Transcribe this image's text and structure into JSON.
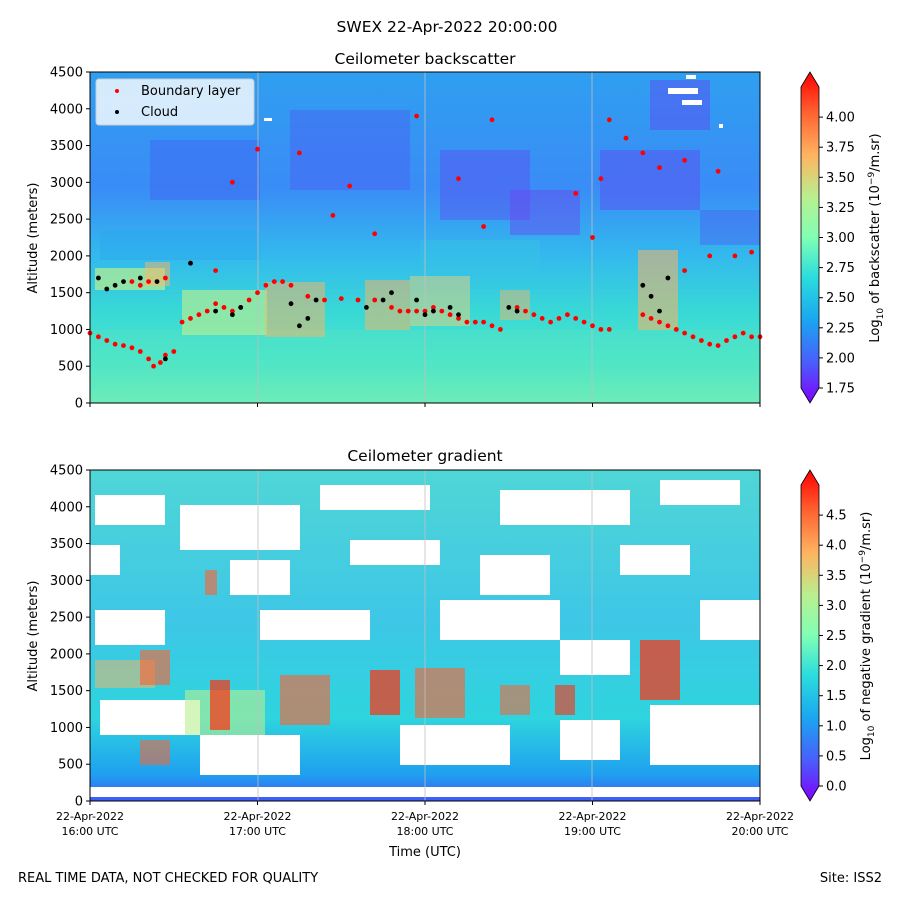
{
  "suptitle": "SWEX 22-Apr-2022 20:00:00",
  "footer": {
    "left": "REAL TIME DATA, NOT CHECKED FOR QUALITY",
    "right": "Site: ISS2"
  },
  "xaxis": {
    "label": "Time (UTC)",
    "range_hours": [
      16,
      20
    ],
    "ticks": [
      {
        "hour": 16,
        "date": "22-Apr-2022",
        "time": "16:00 UTC"
      },
      {
        "hour": 17,
        "date": "22-Apr-2022",
        "time": "17:00 UTC"
      },
      {
        "hour": 18,
        "date": "22-Apr-2022",
        "time": "18:00 UTC"
      },
      {
        "hour": 19,
        "date": "22-Apr-2022",
        "time": "19:00 UTC"
      },
      {
        "hour": 20,
        "date": "22-Apr-2022",
        "time": "20:00 UTC"
      }
    ]
  },
  "chart_data": [
    {
      "type": "heatmap",
      "title": "Ceilometer backscatter",
      "ylabel": "Altitude (meters)",
      "ylim": [
        0,
        4500
      ],
      "yticks": [
        "0",
        "500",
        "1000",
        "1500",
        "2000",
        "2500",
        "3000",
        "3500",
        "4000",
        "4500"
      ],
      "colorbar": {
        "label_main": "Log",
        "label_sub": "10",
        "label_rest": " of backscatter (10",
        "label_sup": "−9",
        "label_end": "/m.sr)",
        "range": [
          1.75,
          4.25
        ],
        "ticks": [
          "1.75",
          "2.00",
          "2.25",
          "2.50",
          "2.75",
          "3.00",
          "3.25",
          "3.50",
          "3.75",
          "4.00"
        ]
      },
      "legend": {
        "placement": "top-left",
        "entries": [
          {
            "label": "Boundary layer",
            "color": "#ff0000"
          },
          {
            "label": "Cloud",
            "color": "#000000"
          }
        ]
      },
      "series": {
        "boundary_layer": [
          [
            16.0,
            950
          ],
          [
            16.05,
            900
          ],
          [
            16.1,
            850
          ],
          [
            16.15,
            800
          ],
          [
            16.2,
            780
          ],
          [
            16.25,
            750
          ],
          [
            16.3,
            700
          ],
          [
            16.35,
            600
          ],
          [
            16.38,
            500
          ],
          [
            16.42,
            550
          ],
          [
            16.45,
            650
          ],
          [
            16.5,
            700
          ],
          [
            16.55,
            1100
          ],
          [
            16.6,
            1150
          ],
          [
            16.65,
            1200
          ],
          [
            16.7,
            1250
          ],
          [
            16.75,
            1350
          ],
          [
            16.8,
            1300
          ],
          [
            16.85,
            1250
          ],
          [
            16.9,
            1300
          ],
          [
            16.95,
            1400
          ],
          [
            17.0,
            1500
          ],
          [
            17.05,
            1600
          ],
          [
            17.1,
            1650
          ],
          [
            17.15,
            1650
          ],
          [
            17.2,
            1600
          ],
          [
            17.3,
            1450
          ],
          [
            17.4,
            1400
          ],
          [
            17.5,
            1420
          ],
          [
            17.6,
            1400
          ],
          [
            17.7,
            1400
          ],
          [
            17.8,
            1300
          ],
          [
            17.85,
            1250
          ],
          [
            17.9,
            1250
          ],
          [
            17.95,
            1250
          ],
          [
            18.0,
            1250
          ],
          [
            18.05,
            1300
          ],
          [
            18.1,
            1250
          ],
          [
            18.15,
            1200
          ],
          [
            18.2,
            1150
          ],
          [
            18.25,
            1100
          ],
          [
            18.3,
            1100
          ],
          [
            18.35,
            1100
          ],
          [
            18.4,
            1050
          ],
          [
            18.45,
            1000
          ],
          [
            18.55,
            1300
          ],
          [
            18.6,
            1250
          ],
          [
            18.65,
            1200
          ],
          [
            18.7,
            1150
          ],
          [
            18.75,
            1100
          ],
          [
            18.8,
            1150
          ],
          [
            18.85,
            1200
          ],
          [
            18.9,
            1150
          ],
          [
            18.95,
            1100
          ],
          [
            19.0,
            1050
          ],
          [
            19.05,
            1000
          ],
          [
            19.1,
            1000
          ],
          [
            19.3,
            1200
          ],
          [
            19.35,
            1150
          ],
          [
            19.4,
            1100
          ],
          [
            19.45,
            1050
          ],
          [
            19.5,
            1000
          ],
          [
            19.55,
            950
          ],
          [
            19.6,
            900
          ],
          [
            19.65,
            850
          ],
          [
            19.7,
            800
          ],
          [
            19.75,
            780
          ],
          [
            19.8,
            850
          ],
          [
            19.85,
            900
          ],
          [
            19.9,
            950
          ],
          [
            19.95,
            900
          ],
          [
            20.0,
            900
          ]
        ],
        "boundary_layer_upper": [
          [
            16.25,
            1650
          ],
          [
            16.3,
            1600
          ],
          [
            16.35,
            1650
          ],
          [
            16.45,
            1700
          ],
          [
            16.6,
            1900
          ],
          [
            16.75,
            1800
          ],
          [
            16.85,
            3000
          ],
          [
            17.0,
            3450
          ],
          [
            17.25,
            3400
          ],
          [
            17.45,
            2550
          ],
          [
            17.55,
            2950
          ],
          [
            17.7,
            2300
          ],
          [
            17.95,
            3900
          ],
          [
            18.2,
            3050
          ],
          [
            18.35,
            2400
          ],
          [
            18.4,
            3850
          ],
          [
            18.9,
            2850
          ],
          [
            19.0,
            2250
          ],
          [
            19.05,
            3050
          ],
          [
            19.1,
            3850
          ],
          [
            19.2,
            3600
          ],
          [
            19.3,
            3400
          ],
          [
            19.4,
            3200
          ],
          [
            19.55,
            3300
          ],
          [
            19.7,
            2000
          ],
          [
            19.85,
            2000
          ],
          [
            19.95,
            2050
          ],
          [
            19.75,
            3150
          ],
          [
            19.55,
            1800
          ]
        ],
        "cloud": [
          [
            16.05,
            1700
          ],
          [
            16.1,
            1550
          ],
          [
            16.15,
            1600
          ],
          [
            16.2,
            1650
          ],
          [
            16.3,
            1700
          ],
          [
            16.4,
            1650
          ],
          [
            16.45,
            600
          ],
          [
            16.6,
            1900
          ],
          [
            16.75,
            1250
          ],
          [
            16.85,
            1200
          ],
          [
            16.9,
            1300
          ],
          [
            17.2,
            1350
          ],
          [
            17.25,
            1050
          ],
          [
            17.3,
            1150
          ],
          [
            17.35,
            1400
          ],
          [
            17.65,
            1300
          ],
          [
            17.75,
            1400
          ],
          [
            17.8,
            1500
          ],
          [
            17.95,
            1400
          ],
          [
            18.0,
            1200
          ],
          [
            18.05,
            1250
          ],
          [
            18.15,
            1300
          ],
          [
            18.2,
            1200
          ],
          [
            18.5,
            1300
          ],
          [
            18.55,
            1250
          ],
          [
            19.3,
            1600
          ],
          [
            19.35,
            1450
          ],
          [
            19.4,
            1250
          ],
          [
            19.45,
            1700
          ]
        ]
      }
    },
    {
      "type": "heatmap",
      "title": "Ceilometer gradient",
      "ylabel": "Altitude (meters)",
      "ylim": [
        0,
        4500
      ],
      "yticks": [
        "0",
        "500",
        "1000",
        "1500",
        "2000",
        "2500",
        "3000",
        "3500",
        "4000",
        "4500"
      ],
      "colorbar": {
        "label_main": "Log",
        "label_sub": "10",
        "label_rest": " of negative gradient (10",
        "label_sup": "−9",
        "label_end": "/m.sr)",
        "range": [
          0.0,
          5.0
        ],
        "ticks": [
          "0.0",
          "0.5",
          "1.0",
          "1.5",
          "2.0",
          "2.5",
          "3.0",
          "3.5",
          "4.0",
          "4.5"
        ]
      }
    }
  ]
}
